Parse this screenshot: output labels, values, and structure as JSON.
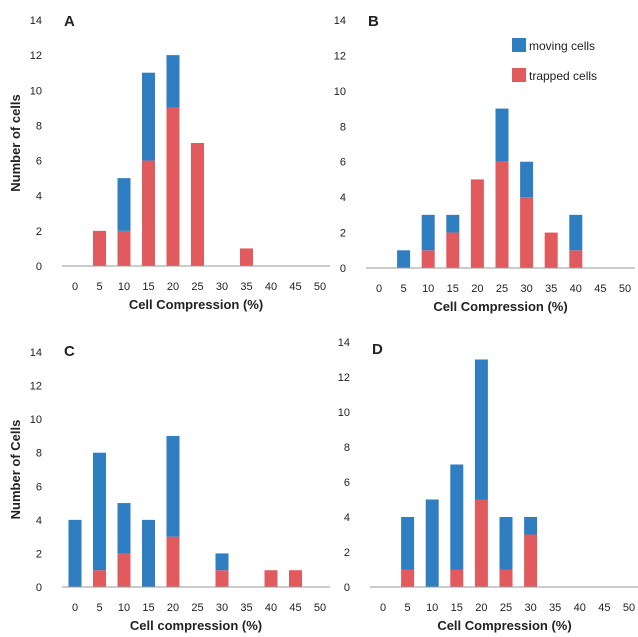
{
  "colors": {
    "moving": "#2f7ec2",
    "trapped": "#e05a5e",
    "axis": "#9a9a9a"
  },
  "legend": [
    {
      "name": "moving cells",
      "color": "#2f7ec2"
    },
    {
      "name": "trapped cells",
      "color": "#e05a5e"
    }
  ],
  "chart_data": [
    {
      "type": "bar",
      "panel": "A",
      "xlabel": "Cell Compression (%)",
      "ylabel": "Number of cells",
      "categories": [
        "0",
        "5",
        "10",
        "15",
        "20",
        "25",
        "30",
        "35",
        "40",
        "45",
        "50"
      ],
      "ylim": [
        0,
        14
      ],
      "yticks": [
        "0",
        "2",
        "4",
        "6",
        "8",
        "10",
        "12",
        "14"
      ],
      "series": [
        {
          "name": "trapped cells",
          "values": [
            0,
            2,
            2,
            6,
            9,
            7,
            0,
            1,
            0,
            0,
            0
          ]
        },
        {
          "name": "moving cells",
          "values": [
            0,
            0,
            3,
            5,
            3,
            0,
            0,
            0,
            0,
            0,
            0
          ]
        }
      ]
    },
    {
      "type": "bar",
      "panel": "B",
      "xlabel": "Cell Compression (%)",
      "ylabel": "",
      "categories": [
        "0",
        "5",
        "10",
        "15",
        "20",
        "25",
        "30",
        "35",
        "40",
        "45",
        "50"
      ],
      "ylim": [
        0,
        14
      ],
      "yticks": [
        "0",
        "2",
        "4",
        "6",
        "8",
        "10",
        "12",
        "14"
      ],
      "series": [
        {
          "name": "trapped cells",
          "values": [
            0,
            0,
            1,
            2,
            5,
            6,
            4,
            2,
            1,
            0,
            0
          ]
        },
        {
          "name": "moving cells",
          "values": [
            0,
            1,
            2,
            1,
            0,
            3,
            2,
            0,
            2,
            0,
            0
          ]
        }
      ]
    },
    {
      "type": "bar",
      "panel": "C",
      "xlabel": "Cell compression (%)",
      "ylabel": "Number of Cells",
      "categories": [
        "0",
        "5",
        "10",
        "15",
        "20",
        "25",
        "30",
        "35",
        "40",
        "45",
        "50"
      ],
      "ylim": [
        0,
        14
      ],
      "yticks": [
        "0",
        "2",
        "4",
        "6",
        "8",
        "10",
        "12",
        "14"
      ],
      "series": [
        {
          "name": "trapped cells",
          "values": [
            0,
            1,
            2,
            0,
            3,
            0,
            1,
            0,
            1,
            1,
            0
          ]
        },
        {
          "name": "moving cells",
          "values": [
            4,
            7,
            3,
            4,
            6,
            0,
            1,
            0,
            0,
            0,
            0
          ]
        }
      ]
    },
    {
      "type": "bar",
      "panel": "D",
      "xlabel": "Cell Compression (%)",
      "ylabel": "",
      "categories": [
        "0",
        "5",
        "10",
        "15",
        "20",
        "25",
        "30",
        "35",
        "40",
        "45",
        "50"
      ],
      "ylim": [
        0,
        14
      ],
      "yticks": [
        "0",
        "2",
        "4",
        "6",
        "8",
        "10",
        "12",
        "14"
      ],
      "series": [
        {
          "name": "trapped cells",
          "values": [
            0,
            1,
            0,
            1,
            5,
            1,
            3,
            0,
            0,
            0,
            0
          ]
        },
        {
          "name": "moving cells",
          "values": [
            0,
            3,
            5,
            6,
            8,
            3,
            1,
            0,
            0,
            0,
            0
          ]
        }
      ]
    }
  ]
}
